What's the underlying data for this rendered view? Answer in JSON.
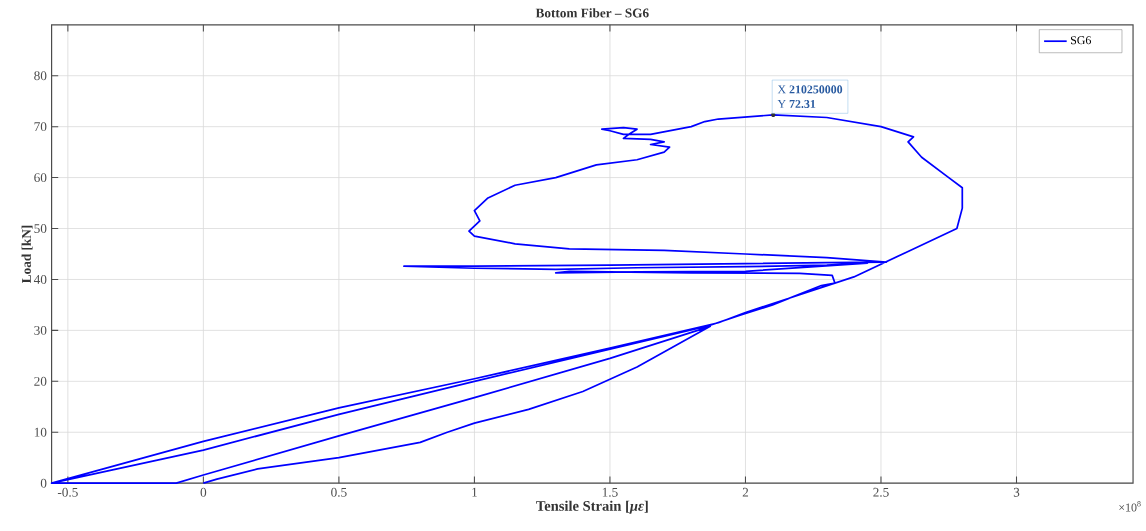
{
  "chart_data": {
    "type": "line",
    "title": "Bottom Fiber – SG6",
    "xlabel": "Tensile Strain [*με*]",
    "ylabel": "Load [kN]",
    "annotations": [
      {
        "text": "X **210250000**",
        "x": 2.1025,
        "y": 72.31
      },
      {
        "text": "Y **72.31**",
        "x": 2.1025,
        "y": 72.31
      },
      "×10$^{8}$"
    ],
    "series": [
      {
        "name": "SG6",
        "color": "#0000ff",
        "x": [
          0.0,
          0.05,
          0.2,
          0.5,
          0.8,
          0.9,
          1.0,
          1.2,
          1.4,
          1.6,
          1.87,
          1.5,
          1.0,
          0.5,
          0.0,
          -0.1,
          -0.56,
          0.0,
          0.5,
          1.0,
          1.5,
          1.9,
          2.0,
          2.2,
          2.4,
          2.6,
          2.78,
          2.8,
          2.8,
          2.75,
          2.65,
          2.6,
          2.62,
          2.5,
          2.3,
          2.1025,
          1.9,
          1.85,
          1.8,
          1.75,
          1.65,
          1.55,
          1.5,
          1.47,
          1.55,
          1.6,
          1.57,
          1.55,
          1.65,
          1.7,
          1.65,
          1.72,
          1.7,
          1.6,
          1.45,
          1.3,
          1.15,
          1.05,
          1.0,
          1.02,
          0.98,
          1.0,
          1.15,
          1.35,
          1.7,
          2.0,
          2.3,
          2.52,
          2.3,
          2.0,
          1.5,
          1.0,
          0.74,
          1.0,
          1.3,
          1.6,
          2.0,
          2.3,
          2.45,
          2.0,
          1.6,
          1.3,
          1.35,
          1.8,
          2.2,
          2.32,
          2.33,
          2.28,
          2.1,
          1.98,
          1.87,
          1.5,
          1.0,
          0.5,
          0.0,
          -0.56
        ],
        "values": [
          0,
          0.8,
          2.8,
          5,
          8,
          10,
          11.8,
          14.5,
          18,
          22.8,
          30.8,
          24.5,
          16.8,
          9.3,
          1.6,
          0,
          0,
          8.2,
          14.8,
          20.5,
          26.5,
          31.5,
          33.5,
          37,
          40.5,
          45.5,
          50,
          54,
          58,
          60,
          64,
          67,
          68,
          70,
          71.8,
          72.31,
          71.5,
          71,
          70,
          69.5,
          68.5,
          68.5,
          69.2,
          69.5,
          69.8,
          69.5,
          68.5,
          67.7,
          67.5,
          67,
          66.5,
          66,
          65,
          63.5,
          62.5,
          60,
          58.5,
          56,
          53.5,
          51.5,
          49.5,
          48.5,
          47,
          46,
          45.7,
          45,
          44.3,
          43.4,
          43.3,
          43.1,
          42.8,
          42.6,
          42.6,
          42.2,
          42.0,
          42.3,
          42.5,
          42.8,
          43.2,
          41.6,
          41.5,
          41.3,
          41.6,
          41.3,
          41.2,
          40.8,
          39.3,
          38.8,
          35.0,
          33.0,
          31,
          26.3,
          20.0,
          13.5,
          6.5,
          0
        ]
      }
    ],
    "xlim": [
      -0.56,
      3.43
    ],
    "ylim": [
      0,
      90
    ],
    "xticks": [
      -0.5,
      0,
      0.5,
      1,
      1.5,
      2,
      2.5,
      3
    ],
    "yticks": [
      0,
      10,
      20,
      30,
      40,
      50,
      60,
      70,
      80
    ],
    "grid": true,
    "legend": "top right",
    "marker": "none",
    "line_style": "solid"
  }
}
